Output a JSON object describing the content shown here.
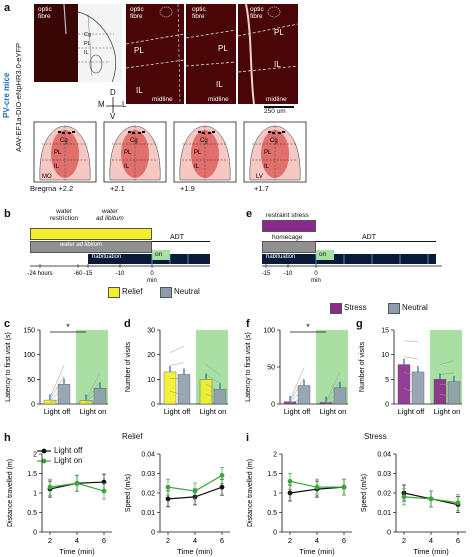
{
  "panels": {
    "a": "a",
    "b": "b",
    "c": "c",
    "d": "d",
    "e": "e",
    "f": "f",
    "g": "g",
    "h": "h",
    "i": "i"
  },
  "panel_a": {
    "side_title": "PV-cre mice",
    "side_subtitle": "AAV-EF1a-DIO-eNpHR3.0-eYFP",
    "schematic_labels": [
      "Cg",
      "PL",
      "IL"
    ],
    "image_labels": {
      "optic": "optic",
      "fibre": "fibre",
      "pl": "PL",
      "il": "IL",
      "midline": "midline"
    },
    "orientation": {
      "d": "D",
      "v": "V",
      "m": "M",
      "l": "L"
    },
    "scale_bar": "250 um",
    "coronal_labels": {
      "cg": "Cg",
      "pl": "PL",
      "il": "IL",
      "mo": "MO",
      "lv": "LV"
    },
    "bregma_prefix": "Bregma",
    "bregma_values": [
      "+2.2",
      "+2.1",
      "+1.9",
      "+1.7"
    ]
  },
  "panel_b": {
    "water_restriction": "water\nrestriction",
    "water_ad_lib": "water\nad libitum",
    "water_ad_lib_bar": "water ad libitum",
    "adt": "ADT",
    "habituation": "habituation",
    "on": "on",
    "ticks": [
      "-24 hours",
      "-60",
      "-15",
      "-10",
      "0"
    ],
    "xunit": "min"
  },
  "panel_e": {
    "restraint": "restraint stress",
    "homecage": "homecage",
    "adt": "ADT",
    "habituation": "habituation",
    "on": "on",
    "ticks": [
      "-15",
      "-10",
      "0"
    ],
    "xunit": "min"
  },
  "legend_relief": {
    "a": "Relief",
    "b": "Neutral"
  },
  "legend_stress": {
    "a": "Stress",
    "b": "Neutral"
  },
  "legend_light": {
    "off": "Light off",
    "on": "Light on"
  },
  "colors": {
    "relief": "#f2ef2a",
    "neutral": "#8e9dab",
    "stress": "#8a2a8a",
    "light_on_band": "#a8e0a4",
    "light_off_line": "#111111",
    "light_on_line": "#3aa63a",
    "tissue": "#d9534f"
  },
  "chart_data": [
    {
      "panel": "c",
      "type": "bar",
      "ylabel": "Latency to first visit (s)",
      "categories": [
        "Light off",
        "Light on"
      ],
      "series": [
        {
          "name": "Relief",
          "values": [
            8,
            7
          ]
        },
        {
          "name": "Neutral",
          "values": [
            40,
            32
          ]
        }
      ],
      "ylim": [
        0,
        150
      ],
      "yticks": [
        0,
        50,
        100,
        150
      ],
      "sig": "*"
    },
    {
      "panel": "d",
      "type": "bar",
      "ylabel": "Number of visits",
      "categories": [
        "Light off",
        "Light on"
      ],
      "series": [
        {
          "name": "Relief",
          "values": [
            13,
            10
          ]
        },
        {
          "name": "Neutral",
          "values": [
            12,
            6
          ]
        }
      ],
      "ylim": [
        0,
        30
      ],
      "yticks": [
        0,
        10,
        20,
        30
      ]
    },
    {
      "panel": "f",
      "type": "bar",
      "ylabel": "Latency to first visit (s)",
      "categories": [
        "Light off",
        "Light on"
      ],
      "series": [
        {
          "name": "Stress",
          "values": [
            3,
            2
          ]
        },
        {
          "name": "Neutral",
          "values": [
            25,
            22
          ]
        }
      ],
      "ylim": [
        0,
        100
      ],
      "yticks": [
        0,
        50,
        100
      ],
      "sig": "*"
    },
    {
      "panel": "g",
      "type": "bar",
      "ylabel": "Number of visits",
      "categories": [
        "Light off",
        "Light on"
      ],
      "series": [
        {
          "name": "Stress",
          "values": [
            8,
            5
          ]
        },
        {
          "name": "Neutral",
          "values": [
            6.5,
            4.5
          ]
        }
      ],
      "ylim": [
        0,
        15
      ],
      "yticks": [
        0,
        5,
        10,
        15
      ]
    },
    {
      "panel": "h",
      "type": "line",
      "title": "Relief",
      "ylabel": "Distance travelled (m)",
      "xlabel": "Time (min)",
      "x": [
        2,
        4,
        6
      ],
      "series": [
        {
          "name": "Light off",
          "values": [
            1.1,
            1.25,
            1.28
          ]
        },
        {
          "name": "Light on",
          "values": [
            1.15,
            1.25,
            1.05
          ]
        }
      ],
      "ylim": [
        0,
        2.0
      ],
      "yticks": [
        0,
        0.5,
        1.0,
        1.5,
        2.0
      ]
    },
    {
      "panel": "h2",
      "type": "line",
      "ylabel": "Speed (m/s)",
      "xlabel": "Time (min)",
      "x": [
        2,
        4,
        6
      ],
      "series": [
        {
          "name": "Light off",
          "values": [
            0.017,
            0.018,
            0.023
          ]
        },
        {
          "name": "Light on",
          "values": [
            0.023,
            0.021,
            0.029
          ]
        }
      ],
      "ylim": [
        0,
        0.04
      ],
      "yticks": [
        0,
        0.01,
        0.02,
        0.03,
        0.04
      ]
    },
    {
      "panel": "i",
      "type": "line",
      "title": "Stress",
      "ylabel": "Distance travelled (m)",
      "xlabel": "Time (min)",
      "x": [
        2,
        4,
        6
      ],
      "series": [
        {
          "name": "Light off",
          "values": [
            1.0,
            1.1,
            1.15
          ]
        },
        {
          "name": "Light on",
          "values": [
            1.3,
            1.15,
            1.15
          ]
        }
      ],
      "ylim": [
        0,
        2.0
      ],
      "yticks": [
        0,
        0.5,
        1.0,
        1.5,
        2.0
      ]
    },
    {
      "panel": "i2",
      "type": "line",
      "ylabel": "Speed (m/s)",
      "xlabel": "Time (min)",
      "x": [
        2,
        4,
        6
      ],
      "series": [
        {
          "name": "Light off",
          "values": [
            0.02,
            0.017,
            0.014
          ]
        },
        {
          "name": "Light on",
          "values": [
            0.018,
            0.017,
            0.015
          ]
        }
      ],
      "ylim": [
        0,
        0.04
      ],
      "yticks": [
        0,
        0.01,
        0.02,
        0.03,
        0.04
      ]
    }
  ]
}
